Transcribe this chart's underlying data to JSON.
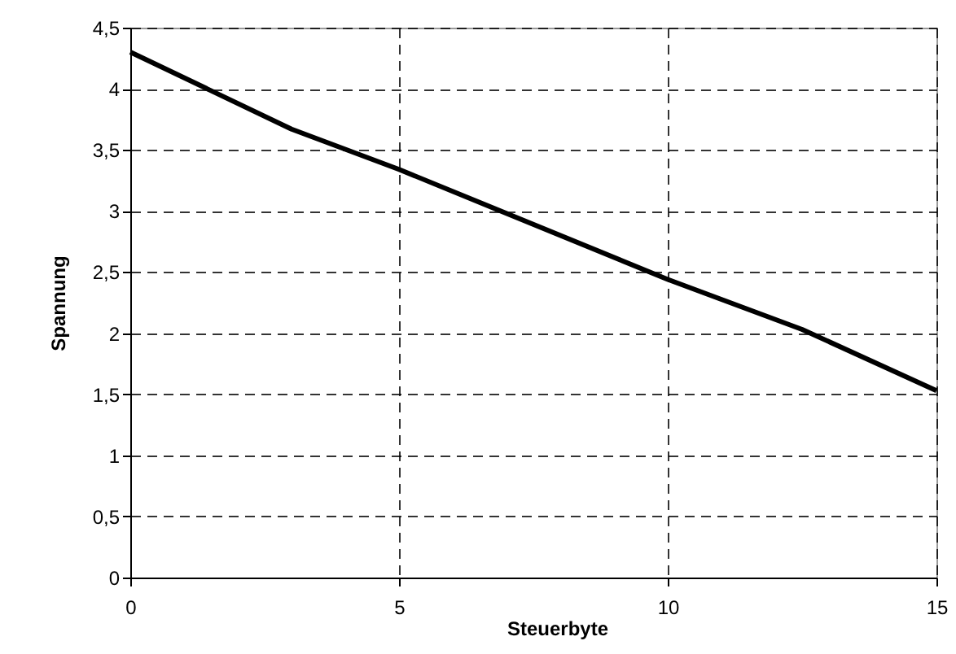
{
  "chart_data": {
    "type": "line",
    "xlabel": "Steuerbyte",
    "ylabel": "Spannung",
    "x": [
      0,
      3,
      5,
      10,
      12.5,
      15
    ],
    "series": [
      {
        "color": "#000000",
        "values": [
          4.3,
          3.67,
          3.34,
          2.44,
          2.03,
          1.53
        ]
      }
    ],
    "xlim": [
      0,
      15
    ],
    "xticks": [
      0,
      5,
      10,
      15
    ],
    "ylim": [
      0,
      4.5
    ],
    "yticks": [
      0,
      {
        "value": 0.5,
        "label": "0,5"
      },
      1,
      {
        "value": 1.5,
        "label": "1,5"
      },
      2,
      {
        "value": 2.5,
        "label": "2,5"
      },
      3,
      {
        "value": 3.5,
        "label": "3,5"
      },
      4,
      {
        "value": 4.5,
        "label": "4,5"
      }
    ],
    "grid": true,
    "line_style": "solid",
    "marker": "none",
    "legend": false
  }
}
